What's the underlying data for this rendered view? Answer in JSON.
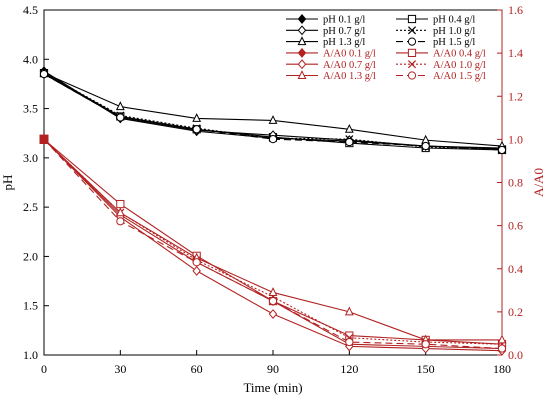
{
  "chart_data": {
    "type": "line",
    "title": "",
    "xlabel": "Time (min)",
    "ylabel": "pH",
    "y2label": "A/A0",
    "x": [
      0,
      30,
      60,
      90,
      120,
      150,
      180
    ],
    "xlim": [
      0,
      180
    ],
    "x_ticks": [
      "0",
      "30",
      "60",
      "90",
      "120",
      "150",
      "180"
    ],
    "ylim": [
      1.0,
      4.5
    ],
    "y_ticks": [
      "1.0",
      "1.5",
      "2.0",
      "2.5",
      "3.0",
      "3.5",
      "4.0",
      "4.5"
    ],
    "y2lim": [
      0.0,
      1.6
    ],
    "y2_ticks": [
      "0.0",
      "0.2",
      "0.4",
      "0.6",
      "0.8",
      "1.0",
      "1.2",
      "1.4",
      "1.6"
    ],
    "grid": false,
    "legend_position": "top-right",
    "colors": {
      "ph": "#000000",
      "absorbance": "#b22222",
      "axis_right": "#b22222"
    },
    "series": [
      {
        "name": "pH 0.1 g/l",
        "axis": "left",
        "marker": "diamond-filled",
        "dash": "solid",
        "values": [
          3.88,
          3.4,
          3.27,
          3.2,
          3.17,
          3.12,
          3.09
        ]
      },
      {
        "name": "pH 0.4 g/l",
        "axis": "left",
        "marker": "square-open",
        "dash": "solid",
        "values": [
          3.86,
          3.42,
          3.29,
          3.21,
          3.15,
          3.1,
          3.08
        ]
      },
      {
        "name": "pH 0.7 g/l",
        "axis": "left",
        "marker": "diamond-open",
        "dash": "solid",
        "values": [
          3.85,
          3.41,
          3.28,
          3.23,
          3.18,
          3.12,
          3.1
        ]
      },
      {
        "name": "pH 1.0 g/l",
        "axis": "left",
        "marker": "x",
        "dash": "dotted",
        "values": [
          3.86,
          3.43,
          3.3,
          3.2,
          3.19,
          3.11,
          3.09
        ]
      },
      {
        "name": "pH 1.3 g/l",
        "axis": "left",
        "marker": "triangle-open",
        "dash": "solid",
        "values": [
          3.86,
          3.52,
          3.4,
          3.38,
          3.29,
          3.18,
          3.12
        ]
      },
      {
        "name": "pH 1.5 g/l",
        "axis": "left",
        "marker": "circle-open",
        "dash": "dashed",
        "values": [
          3.85,
          3.41,
          3.29,
          3.19,
          3.16,
          3.12,
          3.08
        ]
      },
      {
        "name": "A/A0 0.1 g/l",
        "axis": "right",
        "marker": "diamond-filled",
        "dash": "solid",
        "values": [
          1.0,
          0.65,
          0.43,
          0.25,
          0.05,
          0.04,
          0.03
        ]
      },
      {
        "name": "A/A0 0.4 g/l",
        "axis": "right",
        "marker": "square-open",
        "dash": "solid",
        "values": [
          1.0,
          0.7,
          0.46,
          0.25,
          0.09,
          0.07,
          0.05
        ]
      },
      {
        "name": "A/A0 0.7 g/l",
        "axis": "right",
        "marker": "diamond-open",
        "dash": "solid",
        "values": [
          1.0,
          0.64,
          0.39,
          0.19,
          0.04,
          0.03,
          0.02
        ]
      },
      {
        "name": "A/A0 1.0 g/l",
        "axis": "right",
        "marker": "x",
        "dash": "dotted",
        "values": [
          1.0,
          0.66,
          0.44,
          0.27,
          0.08,
          0.06,
          0.05
        ]
      },
      {
        "name": "A/A0 1.3 g/l",
        "axis": "right",
        "marker": "triangle-open",
        "dash": "solid",
        "values": [
          1.0,
          0.66,
          0.45,
          0.29,
          0.2,
          0.07,
          0.07
        ]
      },
      {
        "name": "A/A0 1.5 g/l",
        "axis": "right",
        "marker": "circle-open",
        "dash": "dashed",
        "values": [
          1.0,
          0.62,
          0.43,
          0.25,
          0.06,
          0.05,
          0.03
        ]
      }
    ]
  }
}
